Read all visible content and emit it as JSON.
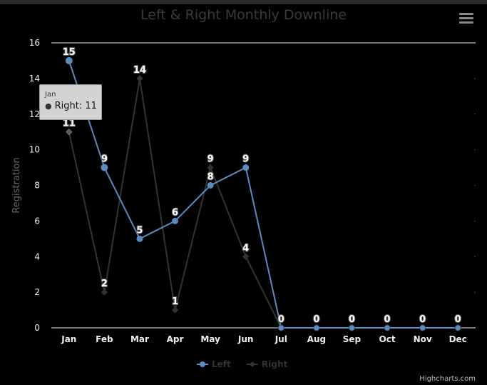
{
  "chart_data": {
    "type": "line",
    "title": "Left & Right Monthly Downline",
    "ylabel": "Registration",
    "xlabel": "",
    "categories": [
      "Jan",
      "Feb",
      "Mar",
      "Apr",
      "May",
      "Jun",
      "Jul",
      "Aug",
      "Sep",
      "Oct",
      "Nov",
      "Dec"
    ],
    "ylim": [
      0,
      16
    ],
    "yticks": [
      0,
      2,
      4,
      6,
      8,
      10,
      12,
      14,
      16
    ],
    "series": [
      {
        "name": "Left",
        "color": "#5b8bc0",
        "marker": "circle",
        "values": [
          15,
          9,
          5,
          6,
          8,
          9,
          0,
          0,
          0,
          0,
          0,
          0
        ]
      },
      {
        "name": "Right",
        "color": "#2a2a2a",
        "marker": "diamond",
        "values": [
          11,
          2,
          14,
          1,
          9,
          4,
          0,
          0,
          0,
          0,
          0,
          0
        ]
      }
    ],
    "legend": "bottom-center",
    "grid": true
  },
  "tooltip": {
    "header": "Jan",
    "series": "Right",
    "value": "11"
  },
  "credits": "Highcharts.com"
}
